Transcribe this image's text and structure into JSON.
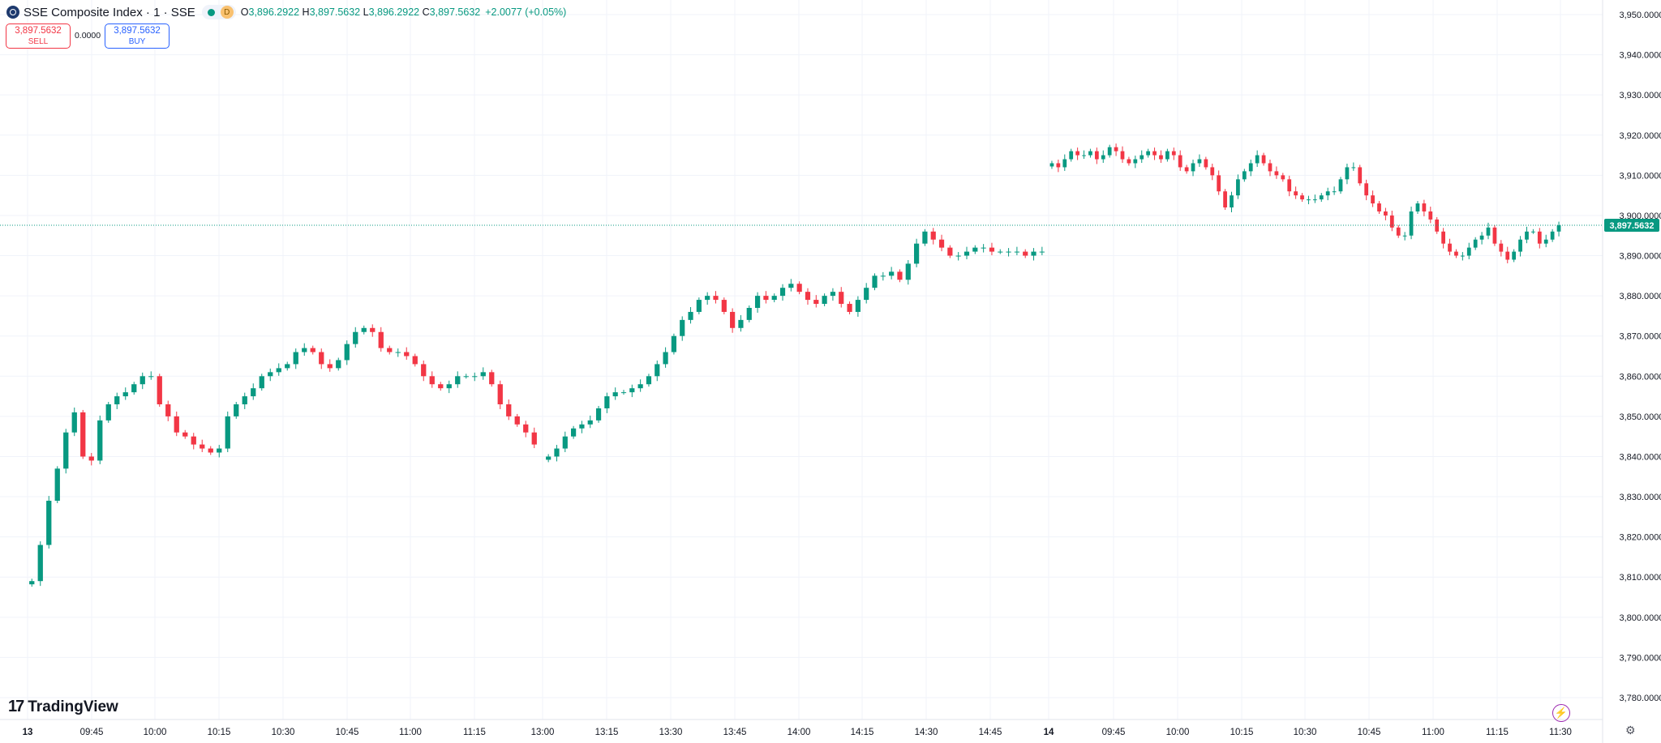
{
  "header": {
    "symbol_title": "SSE Composite Index · 1 · SSE",
    "market_badge": "D",
    "open_key": "O",
    "open_value": "3,896.2922",
    "high_key": "H",
    "high_value": "3,897.5632",
    "low_key": "L",
    "low_value": "3,896.2922",
    "close_key": "C",
    "close_value": "3,897.5632",
    "change": "+2.0077 (+0.05%)"
  },
  "trade": {
    "sell_price": "3,897.5632",
    "sell_label": "SELL",
    "spread": "0.0000",
    "buy_price": "3,897.5632",
    "buy_label": "BUY"
  },
  "branding": {
    "logo_text": "TradingView",
    "logo_mark": "17"
  },
  "colors": {
    "up": "#089981",
    "down": "#f23645",
    "grid": "#f0f3fa",
    "axis_text": "#131722"
  },
  "icons": {
    "symbol": "sse-logo-icon",
    "lightning": "lightning-icon",
    "settings": "gear-icon"
  },
  "chart_data": {
    "type": "candlestick",
    "title": "SSE Composite Index · 1 · SSE",
    "interval": "1",
    "y_ticks": [
      "3,950.0000",
      "3,940.0000",
      "3,930.0000",
      "3,920.0000",
      "3,910.0000",
      "3,900.0000",
      "3,890.0000",
      "3,880.0000",
      "3,870.0000",
      "3,860.0000",
      "3,850.0000",
      "3,840.0000",
      "3,830.0000",
      "3,820.0000",
      "3,810.0000",
      "3,800.0000",
      "3,790.0000",
      "3,780.0000"
    ],
    "ylim": [
      3776,
      3952
    ],
    "x_ticks": [
      "13",
      "09:45",
      "10:00",
      "10:15",
      "10:30",
      "10:45",
      "11:00",
      "11:15",
      "13:00",
      "13:15",
      "13:30",
      "13:45",
      "14:00",
      "14:15",
      "14:30",
      "14:45",
      "14",
      "09:45",
      "10:00",
      "10:15",
      "10:30",
      "10:45",
      "11:00",
      "11:15",
      "11:30"
    ],
    "sessions": [
      {
        "date": "13",
        "segments": [
          {
            "from": "09:30",
            "to": "11:30",
            "values": [
              3809,
              3818,
              3829,
              3837,
              3846,
              3851,
              3840,
              3839,
              3849,
              3853,
              3855,
              3856,
              3858,
              3860,
              3860,
              3853,
              3850,
              3846,
              3845,
              3843,
              3842,
              3841,
              3842,
              3850,
              3853,
              3855,
              3857,
              3860,
              3861,
              3862,
              3863,
              3866,
              3867,
              3866,
              3863,
              3862,
              3864,
              3868,
              3871,
              3872,
              3871,
              3867,
              3866,
              3866,
              3865,
              3863,
              3860,
              3858,
              3857,
              3858,
              3860,
              3860,
              3860,
              3861,
              3858,
              3853,
              3850,
              3848,
              3846,
              3843
            ]
          },
          {
            "from": "13:00",
            "to": "15:00",
            "values": [
              3840,
              3842,
              3845,
              3847,
              3848,
              3849,
              3852,
              3855,
              3856,
              3856,
              3857,
              3858,
              3860,
              3863,
              3866,
              3870,
              3874,
              3876,
              3879,
              3880,
              3879,
              3876,
              3872,
              3874,
              3877,
              3880,
              3879,
              3880,
              3882,
              3883,
              3881,
              3879,
              3878,
              3880,
              3881,
              3878,
              3876,
              3879,
              3882,
              3885,
              3885,
              3886,
              3884,
              3888,
              3893,
              3896,
              3894,
              3892,
              3890,
              3890,
              3891,
              3892,
              3892,
              3891,
              3891,
              3891,
              3891,
              3890,
              3891,
              3891
            ]
          }
        ]
      },
      {
        "date": "14",
        "segments": [
          {
            "from": "09:30",
            "to": "11:31",
            "values": [
              3913,
              3912,
              3914,
              3916,
              3915,
              3915,
              3916,
              3914,
              3915,
              3917,
              3916,
              3914,
              3913,
              3914,
              3915,
              3916,
              3915,
              3914,
              3916,
              3915,
              3912,
              3911,
              3913,
              3914,
              3912,
              3910,
              3906,
              3902,
              3905,
              3909,
              3911,
              3913,
              3915,
              3913,
              3911,
              3910,
              3909,
              3906,
              3905,
              3904,
              3904,
              3904,
              3905,
              3906,
              3906,
              3909,
              3912,
              3912,
              3908,
              3905,
              3903,
              3901,
              3900,
              3897,
              3895,
              3895,
              3901,
              3903,
              3901,
              3899,
              3896,
              3893,
              3891,
              3890,
              3890,
              3892,
              3894,
              3895,
              3897,
              3893,
              3891,
              3889,
              3891,
              3894,
              3896,
              3896,
              3893,
              3894,
              3896,
              3897.5632
            ]
          }
        ]
      }
    ],
    "last_price_label": "3,897.5632",
    "last_price": 3897.5632
  }
}
